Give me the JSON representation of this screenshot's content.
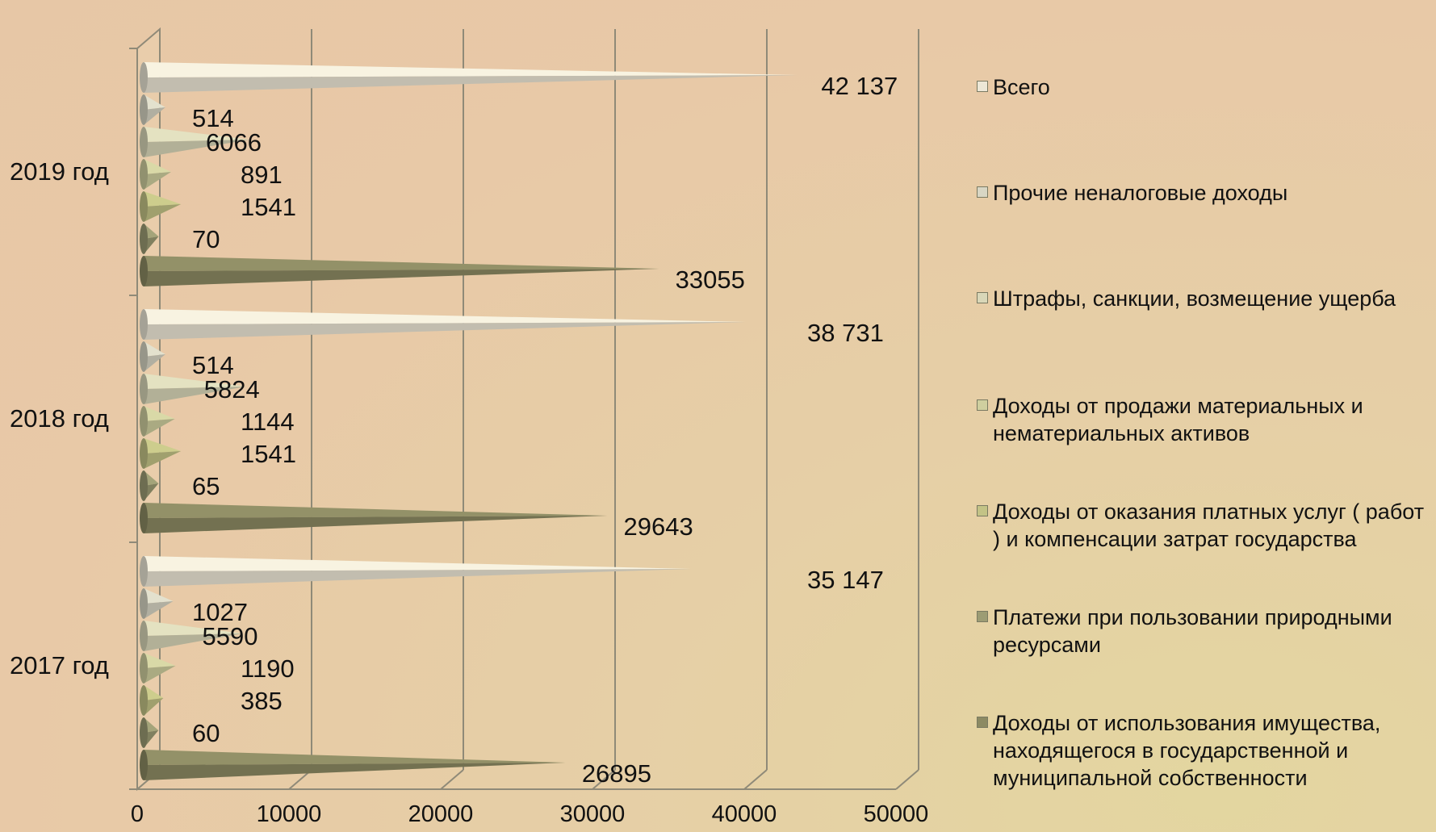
{
  "chart_data": {
    "type": "bar",
    "orientation": "horizontal",
    "style": "3d-cone",
    "xlim": [
      0,
      50000
    ],
    "x_ticks": [
      "0",
      "10000",
      "20000",
      "30000",
      "40000",
      "50000"
    ],
    "categories": [
      "2019 год",
      "2018 год",
      "2017 год"
    ],
    "series": [
      {
        "name": "Всего",
        "color": "#ece7d6",
        "values": [
          42137,
          38731,
          35147
        ],
        "labels": [
          "42 137",
          "38 731",
          "35 147"
        ]
      },
      {
        "name": "Прочие неналоговые доходы",
        "color": "#d8d6c4",
        "values": [
          514,
          514,
          1027
        ],
        "labels": [
          "514",
          "514",
          "1027"
        ]
      },
      {
        "name": "Штрафы, санкции, возмещение ущерба",
        "color": "#d9d7b8",
        "values": [
          6066,
          5824,
          5590
        ],
        "labels": [
          "6066",
          "5824",
          "5590"
        ]
      },
      {
        "name": "Доходы от продажи материальных и нематериальных активов",
        "color": "#cfcf9f",
        "values": [
          891,
          1144,
          1190
        ],
        "labels": [
          "891",
          "1144",
          "1190"
        ]
      },
      {
        "name": "Доходы от оказания платных услуг ( работ ) и компенсации затрат государства",
        "color": "#c3c386",
        "values": [
          1541,
          1541,
          385
        ],
        "labels": [
          "1541",
          "1541",
          "385"
        ]
      },
      {
        "name": "Платежи при пользовании природными ресурсами",
        "color": "#9c9c74",
        "values": [
          70,
          65,
          60
        ],
        "labels": [
          "70",
          "65",
          "60"
        ]
      },
      {
        "name": "Доходы от использования имущества, находящегося в государственной и муниципальной собственности",
        "color": "#8c8a63",
        "values": [
          33055,
          29643,
          26895
        ],
        "labels": [
          "33055",
          "29643",
          "26895"
        ]
      }
    ]
  }
}
